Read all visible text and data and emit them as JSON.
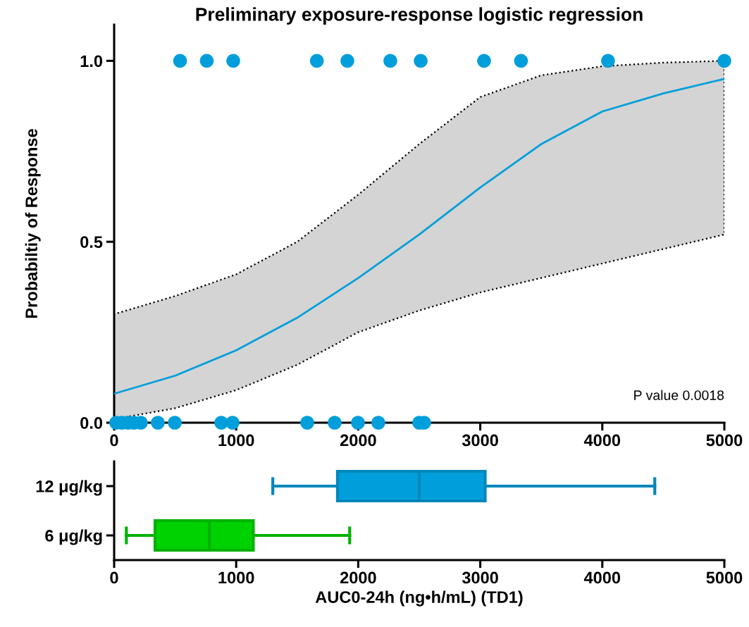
{
  "chart_data": [
    {
      "type": "scatter",
      "title": "Preliminary exposure-response logistic regression",
      "ylabel": "Probabiltiy of Response",
      "xlim": [
        0,
        5000
      ],
      "xticks": [
        0,
        1000,
        2000,
        3000,
        4000,
        5000
      ],
      "ylim": [
        0,
        1.1
      ],
      "yticks": [
        {
          "value": 0,
          "label": "0.0"
        },
        {
          "value": 0.5,
          "label": "0.5"
        },
        {
          "value": 1,
          "label": "1.0"
        }
      ],
      "marker": "circle",
      "annotations": [
        "P value 0.0018"
      ],
      "series": [
        {
          "type": "scatter",
          "color": "#009fdb",
          "x": [
            540,
            759,
            976,
            1661,
            1911,
            2263,
            2512,
            3031,
            3334,
            4047,
            5000,
            17,
            64,
            115,
            162,
            219,
            358,
            497,
            878,
            970,
            1582,
            1807,
            1998,
            2165,
            2500,
            2540
          ],
          "values": [
            1,
            1,
            1,
            1,
            1,
            1,
            1,
            1,
            1,
            1,
            1,
            0,
            0,
            0,
            0,
            0,
            0,
            0,
            0,
            0,
            0,
            0,
            0,
            0,
            0,
            0
          ]
        },
        {
          "type": "line",
          "color": "#009fdb",
          "marker": "none",
          "x": [
            0,
            500,
            1000,
            1500,
            2000,
            2500,
            3000,
            3500,
            4000,
            4500,
            5000
          ],
          "values": [
            0.08,
            0.13,
            0.2,
            0.29,
            0.4,
            0.52,
            0.65,
            0.77,
            0.86,
            0.91,
            0.95
          ],
          "lower": [
            0.01,
            0.04,
            0.09,
            0.16,
            0.25,
            0.31,
            0.36,
            0.4,
            0.44,
            0.48,
            0.52
          ],
          "upper": [
            0.3,
            0.35,
            0.41,
            0.5,
            0.63,
            0.77,
            0.9,
            0.96,
            0.985,
            0.995,
            1.0
          ]
        }
      ]
    },
    {
      "type": "box",
      "orientation": "horizontal",
      "xlabel": "AUC0-24h (ng•h/mL) (TD1)",
      "xlim": [
        0,
        5000
      ],
      "xticks": [
        0,
        1000,
        2000,
        3000,
        4000,
        5000
      ],
      "categories": [
        "12 μg/kg",
        "6 μg/kg"
      ],
      "colors": [
        "#009fdb",
        "#00d100"
      ],
      "boxes": [
        {
          "low": 1300,
          "q1": 1830,
          "median": 2500,
          "q3": 3040,
          "high": 4430
        },
        {
          "low": 100,
          "q1": 335,
          "median": 780,
          "q3": 1140,
          "high": 1930
        }
      ]
    }
  ]
}
